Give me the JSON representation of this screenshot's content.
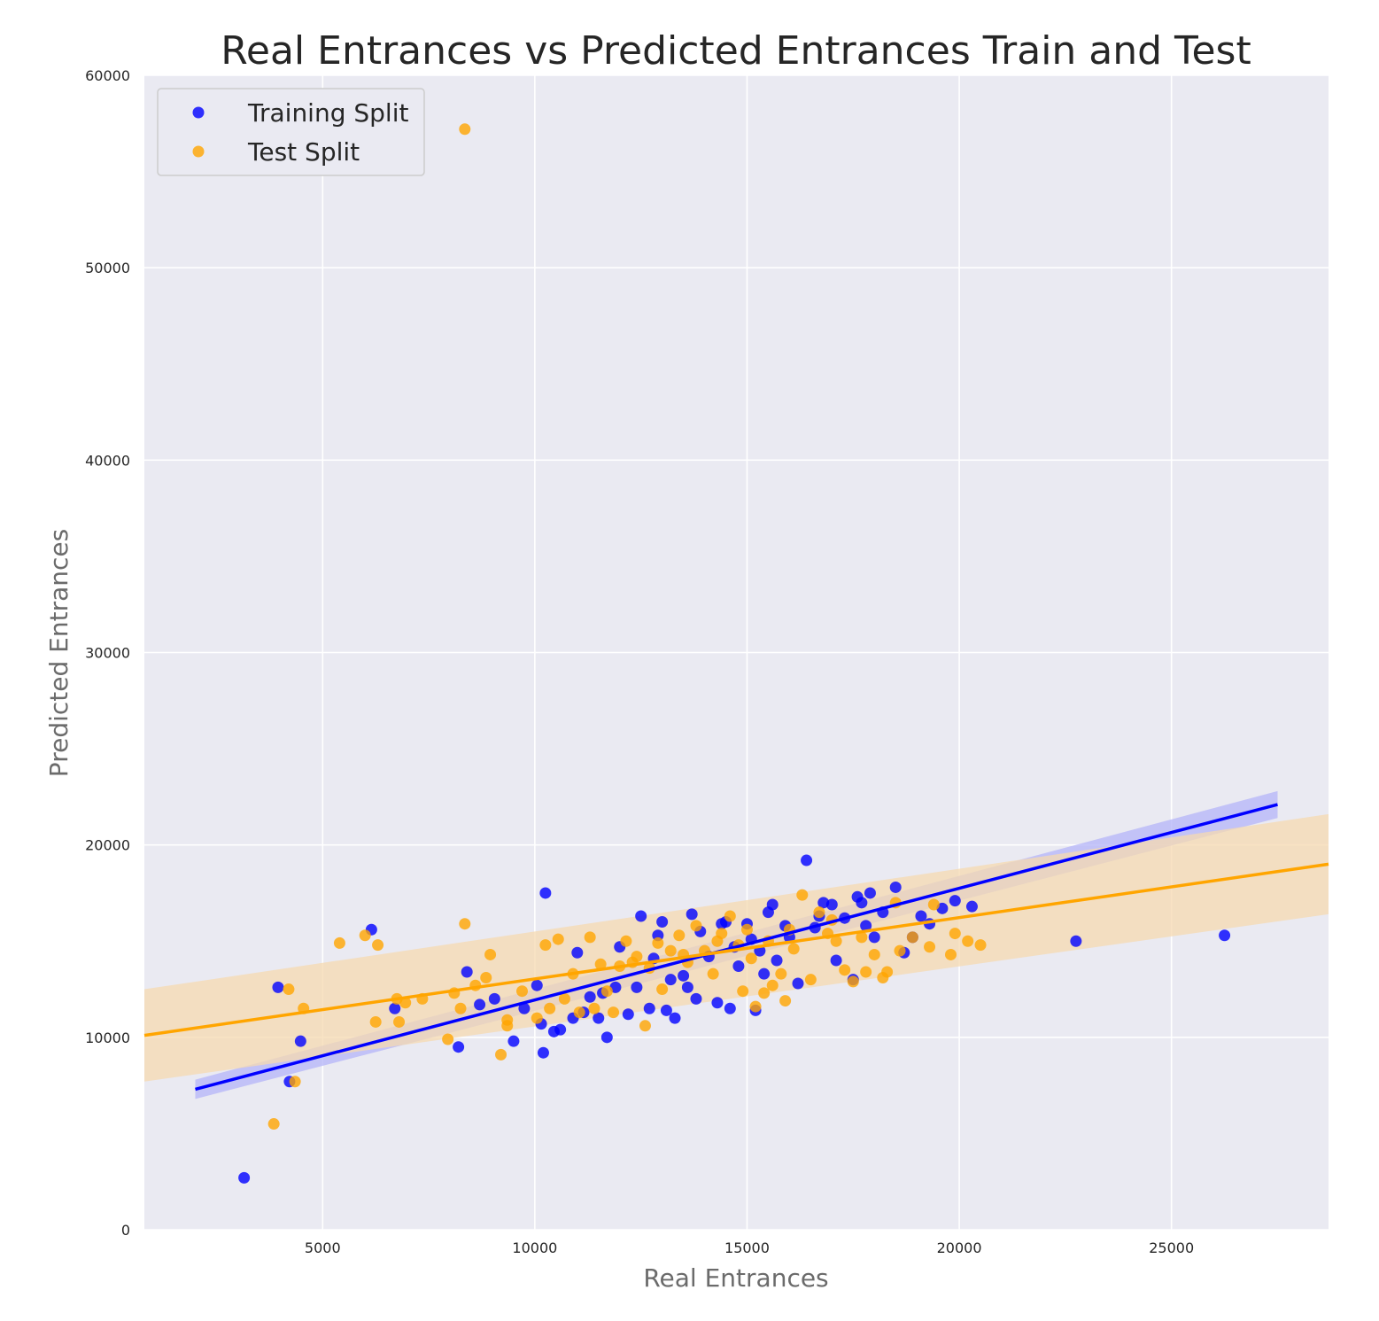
{
  "chart_data": {
    "type": "scatter",
    "title": "Real Entrances vs Predicted Entrances Train and Test",
    "xlabel": "Real Entrances",
    "ylabel": "Predicted Entrances",
    "xlim": [
      800,
      28700
    ],
    "ylim": [
      0,
      60000
    ],
    "x_ticks": [
      5000,
      10000,
      15000,
      20000,
      25000
    ],
    "y_ticks": [
      0,
      10000,
      20000,
      30000,
      40000,
      50000,
      60000
    ],
    "grid": true,
    "legend_position": "top-left",
    "colors": {
      "background": "#eaeaf2",
      "grid": "#ffffff",
      "training": "#0000ff",
      "test": "#ffa500",
      "training_band": "#b4b4f8",
      "test_band": "#f5d9b0"
    },
    "series": [
      {
        "name": "Training Split",
        "color": "#0000ff",
        "points": [
          [
            3150,
            2700
          ],
          [
            4220,
            7700
          ],
          [
            4480,
            9800
          ],
          [
            3950,
            12600
          ],
          [
            6150,
            15600
          ],
          [
            6700,
            11500
          ],
          [
            8200,
            9500
          ],
          [
            8400,
            13400
          ],
          [
            8700,
            11700
          ],
          [
            9050,
            12000
          ],
          [
            9500,
            9800
          ],
          [
            9750,
            11500
          ],
          [
            10050,
            12700
          ],
          [
            10150,
            10700
          ],
          [
            10200,
            9200
          ],
          [
            10250,
            17500
          ],
          [
            10450,
            10300
          ],
          [
            10600,
            10400
          ],
          [
            10900,
            11000
          ],
          [
            11000,
            14400
          ],
          [
            11150,
            11300
          ],
          [
            11300,
            12100
          ],
          [
            11500,
            11000
          ],
          [
            11700,
            10000
          ],
          [
            11900,
            12600
          ],
          [
            12000,
            14700
          ],
          [
            12200,
            11200
          ],
          [
            12400,
            12600
          ],
          [
            12500,
            16300
          ],
          [
            12700,
            11500
          ],
          [
            12900,
            15300
          ],
          [
            13000,
            16000
          ],
          [
            13100,
            11400
          ],
          [
            13300,
            11000
          ],
          [
            13500,
            13200
          ],
          [
            13600,
            12600
          ],
          [
            13700,
            16400
          ],
          [
            13800,
            12000
          ],
          [
            13900,
            15500
          ],
          [
            14100,
            14200
          ],
          [
            14300,
            11800
          ],
          [
            14400,
            15900
          ],
          [
            14600,
            11500
          ],
          [
            14700,
            14700
          ],
          [
            14800,
            13700
          ],
          [
            15000,
            15900
          ],
          [
            15100,
            15100
          ],
          [
            15200,
            11400
          ],
          [
            15300,
            14500
          ],
          [
            15400,
            13300
          ],
          [
            15600,
            16900
          ],
          [
            15700,
            14000
          ],
          [
            15900,
            15800
          ],
          [
            16000,
            15200
          ],
          [
            16200,
            12800
          ],
          [
            16400,
            19200
          ],
          [
            16600,
            15700
          ],
          [
            16800,
            17000
          ],
          [
            17000,
            16900
          ],
          [
            17100,
            14000
          ],
          [
            17300,
            16200
          ],
          [
            17500,
            13000
          ],
          [
            17600,
            17300
          ],
          [
            17800,
            15800
          ],
          [
            17900,
            17500
          ],
          [
            18000,
            15200
          ],
          [
            18200,
            16500
          ],
          [
            18500,
            17800
          ],
          [
            18700,
            14400
          ],
          [
            18900,
            15200
          ],
          [
            19100,
            16300
          ],
          [
            19300,
            15900
          ],
          [
            19600,
            16700
          ],
          [
            19900,
            17100
          ],
          [
            20300,
            16800
          ],
          [
            22750,
            15000
          ],
          [
            26250,
            15300
          ],
          [
            11600,
            12300
          ],
          [
            12800,
            14100
          ],
          [
            13200,
            13000
          ],
          [
            14500,
            16000
          ],
          [
            15500,
            16500
          ],
          [
            16700,
            16300
          ],
          [
            17700,
            17000
          ]
        ]
      },
      {
        "name": "Test Split",
        "color": "#ffa500",
        "points": [
          [
            8350,
            57200
          ],
          [
            3850,
            5500
          ],
          [
            4350,
            7700
          ],
          [
            4200,
            12500
          ],
          [
            4550,
            11500
          ],
          [
            5400,
            14900
          ],
          [
            6000,
            15300
          ],
          [
            6300,
            14800
          ],
          [
            6250,
            10800
          ],
          [
            6750,
            12000
          ],
          [
            6800,
            10800
          ],
          [
            6950,
            11800
          ],
          [
            7350,
            12000
          ],
          [
            7950,
            9900
          ],
          [
            8100,
            12300
          ],
          [
            8250,
            11500
          ],
          [
            8350,
            15900
          ],
          [
            8600,
            12700
          ],
          [
            8850,
            13100
          ],
          [
            8950,
            14300
          ],
          [
            9200,
            9100
          ],
          [
            9350,
            10900
          ],
          [
            9350,
            10600
          ],
          [
            9700,
            12400
          ],
          [
            10050,
            11000
          ],
          [
            10250,
            14800
          ],
          [
            10350,
            11500
          ],
          [
            10550,
            15100
          ],
          [
            10700,
            12000
          ],
          [
            10900,
            13300
          ],
          [
            11050,
            11300
          ],
          [
            11300,
            15200
          ],
          [
            11400,
            11500
          ],
          [
            11550,
            13800
          ],
          [
            11700,
            12400
          ],
          [
            11850,
            11300
          ],
          [
            12000,
            13700
          ],
          [
            12150,
            15000
          ],
          [
            12400,
            14200
          ],
          [
            12600,
            10600
          ],
          [
            12700,
            13600
          ],
          [
            12900,
            14900
          ],
          [
            13000,
            12500
          ],
          [
            13200,
            14500
          ],
          [
            13400,
            15300
          ],
          [
            13600,
            13900
          ],
          [
            13800,
            15800
          ],
          [
            14000,
            14500
          ],
          [
            14200,
            13300
          ],
          [
            14400,
            15400
          ],
          [
            14600,
            16300
          ],
          [
            14800,
            14800
          ],
          [
            14900,
            12400
          ],
          [
            15000,
            15600
          ],
          [
            15200,
            11600
          ],
          [
            15400,
            12300
          ],
          [
            15500,
            15000
          ],
          [
            15600,
            12700
          ],
          [
            15800,
            13300
          ],
          [
            15900,
            11900
          ],
          [
            16100,
            14600
          ],
          [
            16300,
            17400
          ],
          [
            16500,
            13000
          ],
          [
            16700,
            16500
          ],
          [
            16900,
            15400
          ],
          [
            17100,
            15000
          ],
          [
            17300,
            13500
          ],
          [
            17500,
            12900
          ],
          [
            17700,
            15200
          ],
          [
            17800,
            13400
          ],
          [
            18000,
            14300
          ],
          [
            18200,
            13100
          ],
          [
            18300,
            13400
          ],
          [
            18500,
            17000
          ],
          [
            18600,
            14500
          ],
          [
            18900,
            15200
          ],
          [
            19300,
            14700
          ],
          [
            19400,
            16900
          ],
          [
            19800,
            14300
          ],
          [
            19900,
            15400
          ],
          [
            20200,
            15000
          ],
          [
            20500,
            14800
          ],
          [
            12300,
            13900
          ],
          [
            13500,
            14300
          ],
          [
            14300,
            15000
          ],
          [
            15100,
            14100
          ],
          [
            16000,
            15600
          ],
          [
            17000,
            16100
          ]
        ]
      }
    ],
    "regression": [
      {
        "series": "Training Split",
        "x": [
          2000,
          27500
        ],
        "y": [
          7300,
          22100
        ],
        "band_halfwidth_start": 500,
        "band_halfwidth_end": 700
      },
      {
        "series": "Test Split",
        "x": [
          800,
          28700
        ],
        "y": [
          10100,
          19000
        ],
        "band_halfwidth_start": 2400,
        "band_halfwidth_end": 2600
      }
    ]
  }
}
